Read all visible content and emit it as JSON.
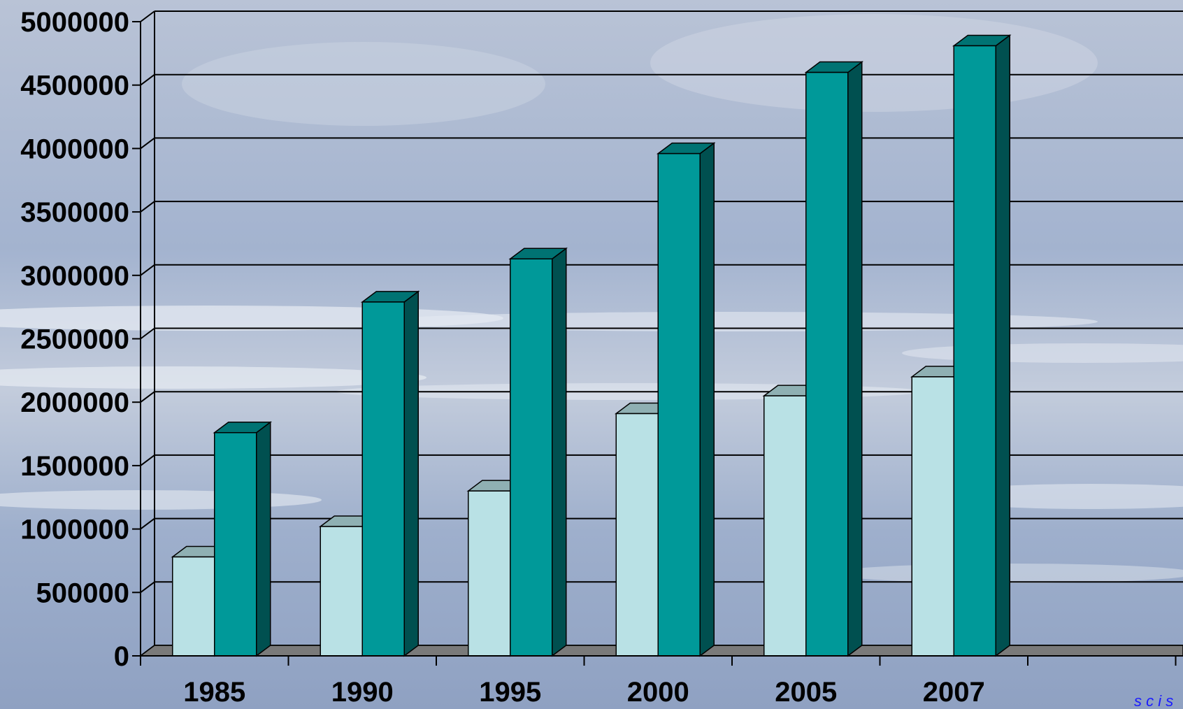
{
  "chart_data": {
    "type": "bar",
    "categories": [
      "1985",
      "1990",
      "1995",
      "2000",
      "2005",
      "2007"
    ],
    "series": [
      {
        "values": [
          780000,
          1020000,
          1300000,
          1910000,
          2050000,
          2200000
        ]
      },
      {
        "values": [
          1760000,
          2790000,
          3130000,
          3960000,
          4600000,
          4810000
        ]
      }
    ],
    "ylim": [
      0,
      5000000
    ],
    "yticks": [
      0,
      500000,
      1000000,
      1500000,
      2000000,
      2500000,
      3000000,
      3500000,
      4000000,
      4500000,
      5000000
    ],
    "title": "",
    "xlabel": "",
    "ylabel": "",
    "grid": true,
    "legend": "none",
    "style": "3d-clustered-columns",
    "colors": {
      "series_0_front": "#b9e1e5",
      "series_0_top": "#8fb0b3",
      "series_0_side": "#6f8a8d",
      "series_1_front": "#009999",
      "series_1_top": "#007373",
      "series_1_side": "#005050",
      "floor": "#7a7a7a",
      "gridline": "#000000",
      "axis_text": "#000000"
    }
  },
  "corner_mark": "s c i s"
}
